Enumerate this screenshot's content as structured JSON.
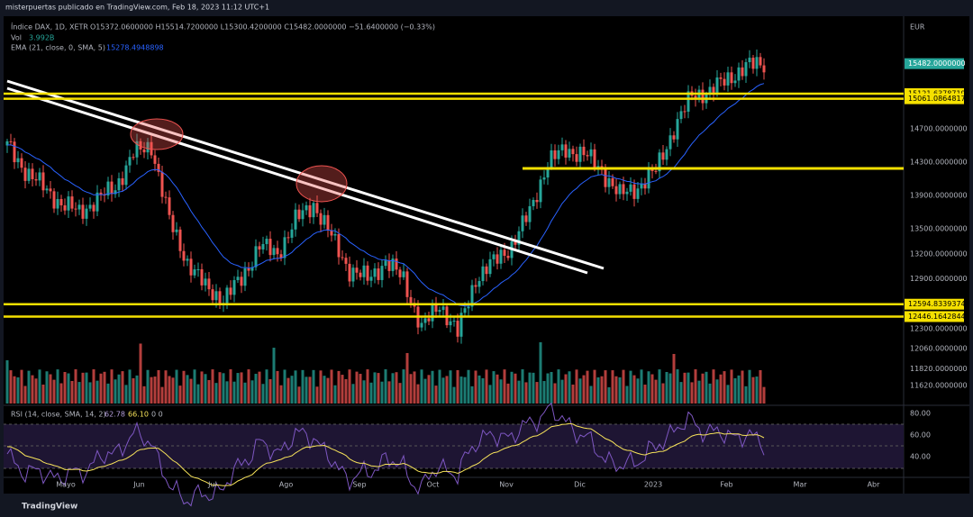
{
  "header": {
    "author_line": "misterpuertas publicado en TradingView.com, Feb 18, 2023 11:12 UTC+1"
  },
  "legend": {
    "symbol": "Índice DAX, 1D, XETR",
    "ohlc": "O15372.0600000  H15514.7200000  L15300.4200000  C15482.0000000  −51.6400000 (−0.33%)",
    "volume_name": "Vol",
    "volume_value": "3.992B",
    "ema_name": "EMA (21, close, 0, SMA, 5)",
    "ema_value": "15278.4948898"
  },
  "currency": "EUR",
  "price_axis": [
    {
      "value": 14700,
      "label": "14700.0000000"
    },
    {
      "value": 14300,
      "label": "14300.0000000"
    },
    {
      "value": 13900,
      "label": "13900.0000000"
    },
    {
      "value": 13500,
      "label": "13500.0000000"
    },
    {
      "value": 13200,
      "label": "13200.0000000"
    },
    {
      "value": 12900,
      "label": "12900.0000000"
    },
    {
      "value": 12300,
      "label": "12300.0000000"
    },
    {
      "value": 12060,
      "label": "12060.0000000"
    },
    {
      "value": 11820,
      "label": "11820.0000000"
    },
    {
      "value": 11620,
      "label": "11620.0000000"
    }
  ],
  "last_price": {
    "value": 15482,
    "label": "15482.0000000"
  },
  "levels": [
    {
      "value": 15121.6378719,
      "label": "15121.6378719"
    },
    {
      "value": 15061.0864817,
      "label": "15061.0864817"
    },
    {
      "value": 12594.8339374,
      "label": "12594.8339374"
    },
    {
      "value": 12446.1642844,
      "label": "12446.1642844"
    }
  ],
  "closes": [
    14500,
    14200,
    14000,
    13800,
    13700,
    13850,
    14000,
    14400,
    14500,
    13600,
    13100,
    12800,
    12650,
    12900,
    13300,
    13200,
    13600,
    13800,
    13400,
    13000,
    12900,
    13100,
    12900,
    12300,
    12600,
    12250,
    12900,
    13100,
    13300,
    13700,
    14300,
    14450,
    14400,
    14200,
    13900,
    14000,
    14200,
    14700,
    15100,
    15150,
    15300,
    15450,
    15482
  ],
  "rsi": {
    "label": "RSI (14, close, SMA, 14, 2)",
    "value": "62.78",
    "ma_value": "66.10",
    "extra": "0  0",
    "ticks": [
      "80.00",
      "60.00",
      "40.00"
    ]
  },
  "months": [
    "Mayo",
    "Jun",
    "Jul",
    "Ago",
    "Sep",
    "Oct",
    "Nov",
    "Dic",
    "2023",
    "Feb",
    "Mar",
    "Abr"
  ],
  "footer": "TradingView"
}
